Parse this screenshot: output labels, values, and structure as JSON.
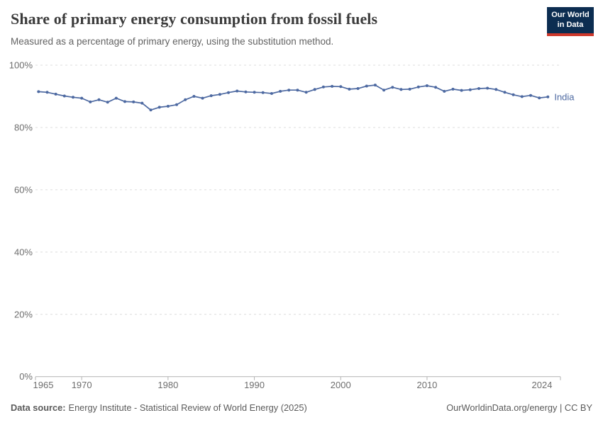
{
  "header": {
    "title": "Share of primary energy consumption from fossil fuels",
    "subtitle": "Measured as a percentage of primary energy, using the substitution method.",
    "logo": {
      "line1": "Our World",
      "line2": "in Data"
    }
  },
  "chart_data": {
    "type": "line",
    "title": "Share of primary energy consumption from fossil fuels",
    "subtitle": "Measured as a percentage of primary energy, using the substitution method.",
    "xlabel": "",
    "ylabel": "",
    "ylim": [
      0,
      100
    ],
    "grid": true,
    "x": [
      1965,
      1966,
      1967,
      1968,
      1969,
      1970,
      1971,
      1972,
      1973,
      1974,
      1975,
      1976,
      1977,
      1978,
      1979,
      1980,
      1981,
      1982,
      1983,
      1984,
      1985,
      1986,
      1987,
      1988,
      1989,
      1990,
      1991,
      1992,
      1993,
      1994,
      1995,
      1996,
      1997,
      1998,
      1999,
      2000,
      2001,
      2002,
      2003,
      2004,
      2005,
      2006,
      2007,
      2008,
      2009,
      2010,
      2011,
      2012,
      2013,
      2014,
      2015,
      2016,
      2017,
      2018,
      2019,
      2020,
      2021,
      2022,
      2023,
      2024
    ],
    "series": [
      {
        "name": "India",
        "values": [
          91.5,
          91.3,
          90.7,
          90.1,
          89.7,
          89.4,
          88.2,
          88.9,
          88.1,
          89.4,
          88.3,
          88.2,
          87.8,
          85.6,
          86.5,
          86.8,
          87.3,
          88.9,
          90.0,
          89.4,
          90.2,
          90.6,
          91.2,
          91.7,
          91.4,
          91.3,
          91.2,
          90.9,
          91.6,
          92.0,
          92.0,
          91.3,
          92.2,
          93.0,
          93.2,
          93.1,
          92.3,
          92.5,
          93.3,
          93.6,
          92.0,
          92.9,
          92.2,
          92.3,
          93.0,
          93.4,
          92.9,
          91.6,
          92.3,
          91.9,
          92.1,
          92.5,
          92.6,
          92.2,
          91.3,
          90.5,
          89.9,
          90.3,
          89.5,
          89.8
        ]
      }
    ],
    "yticks": [
      0,
      20,
      40,
      60,
      80,
      100
    ],
    "ytick_labels": [
      "0%",
      "20%",
      "40%",
      "60%",
      "80%",
      "100%"
    ],
    "xticks": [
      1965,
      1970,
      1980,
      1990,
      2000,
      2010,
      2024
    ],
    "xtick_labels": [
      "1965",
      "1970",
      "1980",
      "1990",
      "2000",
      "2010",
      "2024"
    ],
    "legend_position": "end-of-line"
  },
  "colors": {
    "line": "#4d69a1",
    "grid": "#dcdcdc",
    "axis": "#b3b3b3",
    "tick_text": "#6e6e6e",
    "logo_bg": "#0c2d51",
    "logo_bar": "#ce392c"
  },
  "footer": {
    "datasource_label": "Data source:",
    "datasource_text": "Energy Institute - Statistical Review of World Energy (2025)",
    "credit": "OurWorldinData.org/energy | CC BY"
  }
}
